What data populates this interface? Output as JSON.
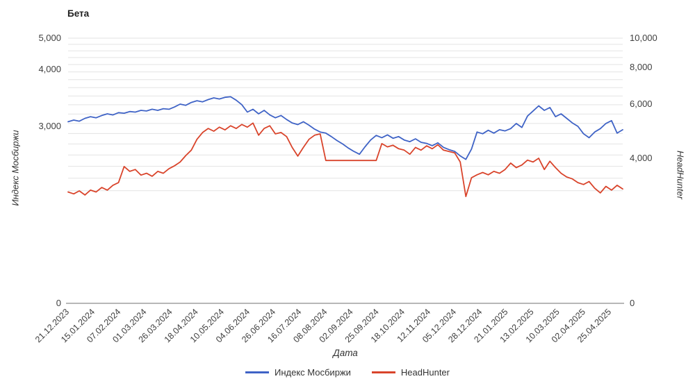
{
  "chart_data": {
    "type": "line",
    "title": "Бета",
    "xlabel": "Дата",
    "grid": true,
    "legend_position": "bottom",
    "x_ticks": [
      "21.12.2023",
      "15.01.2024",
      "07.02.2024",
      "01.03.2024",
      "26.03.2024",
      "18.04.2024",
      "10.05.2024",
      "04.06.2024",
      "26.06.2024",
      "16.07.2024",
      "08.08.2024",
      "02.09.2024",
      "25.09.2024",
      "18.10.2024",
      "12.11.2024",
      "05.12.2024",
      "28.12.2024",
      "21.01.2025",
      "13.02.2025",
      "10.03.2025",
      "02.04.2025",
      "25.04.2025"
    ],
    "left_axis": {
      "title": "Индекс Мосбиржи",
      "tick_labels": [
        "5,000",
        "4,000",
        "3,000",
        "0"
      ]
    },
    "right_axis": {
      "title": "HeadHunter",
      "tick_labels": [
        "10,000",
        "8,000",
        "6,000",
        "4,000",
        "0"
      ]
    },
    "series": [
      {
        "name": "Индекс Мосбиржи",
        "axis": "left",
        "color": "#3f63c6",
        "values": [
          3080,
          3110,
          3090,
          3140,
          3170,
          3150,
          3190,
          3220,
          3200,
          3240,
          3230,
          3260,
          3250,
          3280,
          3270,
          3300,
          3280,
          3310,
          3300,
          3340,
          3390,
          3370,
          3420,
          3450,
          3430,
          3470,
          3500,
          3480,
          3510,
          3520,
          3460,
          3380,
          3250,
          3300,
          3220,
          3280,
          3200,
          3150,
          3190,
          3120,
          3060,
          3030,
          3080,
          3020,
          2950,
          2900,
          2880,
          2820,
          2750,
          2690,
          2620,
          2560,
          2510,
          2640,
          2760,
          2840,
          2800,
          2850,
          2790,
          2820,
          2760,
          2730,
          2780,
          2720,
          2700,
          2660,
          2710,
          2630,
          2590,
          2560,
          2480,
          2420,
          2600,
          2900,
          2870,
          2930,
          2880,
          2940,
          2920,
          2960,
          3050,
          2980,
          3180,
          3270,
          3360,
          3280,
          3330,
          3170,
          3220,
          3140,
          3060,
          3000,
          2870,
          2800,
          2900,
          2960,
          3050,
          3100,
          2880,
          2940
        ]
      },
      {
        "name": "HeadHunter",
        "axis": "right",
        "color": "#d9442b",
        "values": [
          3100,
          3050,
          3130,
          3020,
          3150,
          3100,
          3220,
          3150,
          3280,
          3350,
          3780,
          3650,
          3700,
          3550,
          3600,
          3520,
          3650,
          3600,
          3720,
          3800,
          3900,
          4100,
          4300,
          4700,
          4950,
          5100,
          5000,
          5150,
          5050,
          5200,
          5100,
          5250,
          5150,
          5300,
          4850,
          5100,
          5200,
          4900,
          4950,
          4800,
          4400,
          4080,
          4400,
          4700,
          4850,
          4900,
          3940,
          3940,
          3940,
          3940,
          3940,
          3940,
          3940,
          3940,
          3940,
          3940,
          4540,
          4420,
          4480,
          4350,
          4300,
          4150,
          4400,
          4300,
          4460,
          4350,
          4500,
          4300,
          4250,
          4200,
          3900,
          2980,
          3480,
          3560,
          3620,
          3560,
          3650,
          3600,
          3700,
          3870,
          3750,
          3820,
          3950,
          3900,
          4000,
          3700,
          3920,
          3750,
          3600,
          3500,
          3450,
          3350,
          3300,
          3380,
          3200,
          3075,
          3250,
          3150,
          3280,
          3180
        ]
      }
    ]
  }
}
